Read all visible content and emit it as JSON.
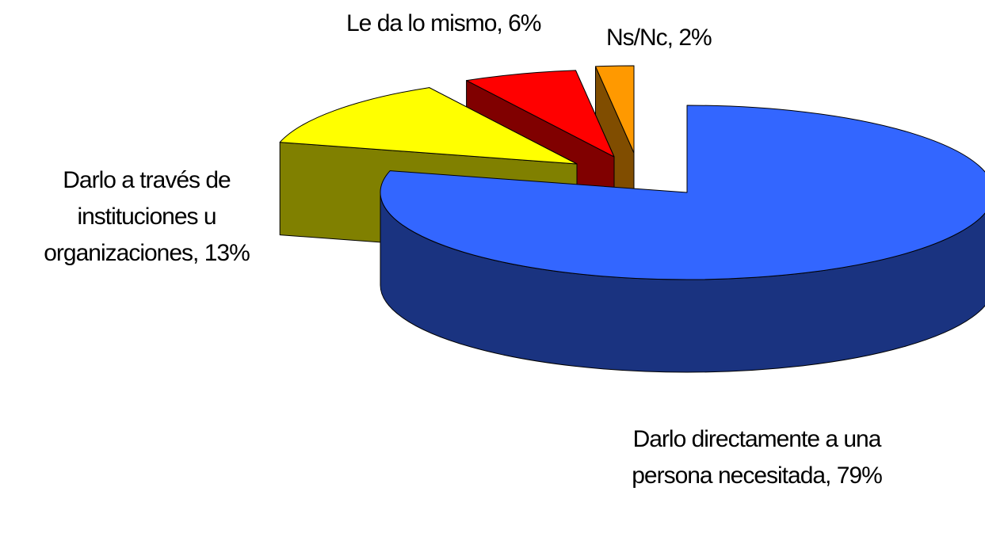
{
  "chart_data": {
    "type": "pie3d",
    "values": [
      79,
      13,
      6,
      2
    ],
    "value_labels": [
      "Darlo directamente a una persona necesitada, 79%",
      "Darlo a través de instituciones u organizaciones, 13%",
      "Le da lo mismo, 6%",
      "Ns/Nc, 2%"
    ],
    "colors": [
      "#3366ff",
      "#ffff00",
      "#ff0000",
      "#ff9900"
    ]
  }
}
